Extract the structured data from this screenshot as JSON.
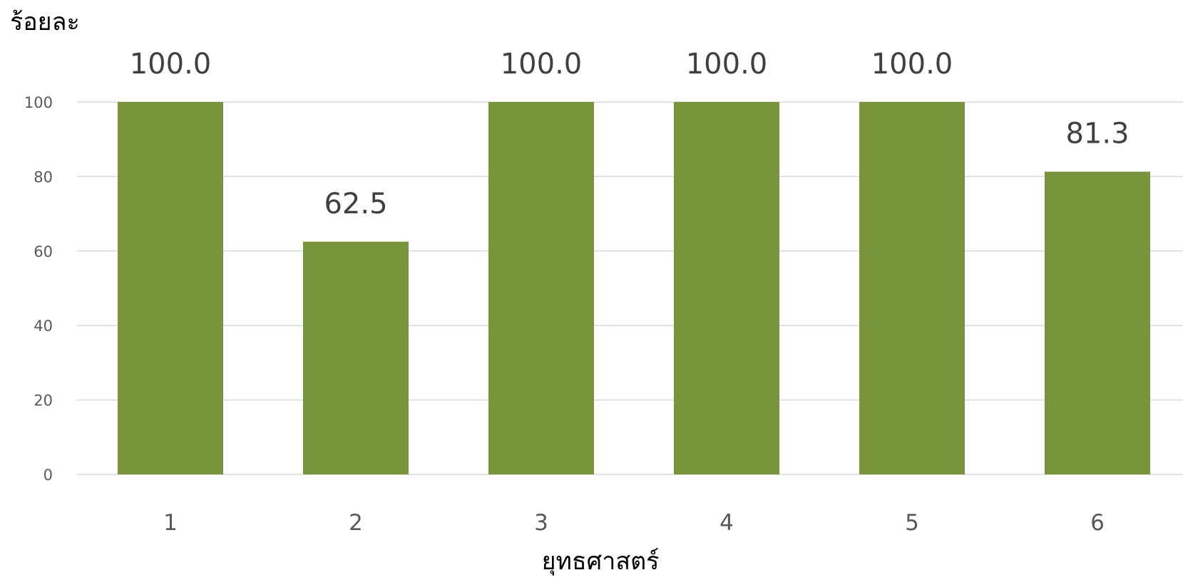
{
  "chart_data": {
    "type": "bar",
    "ylabel": "ร้อยละ",
    "xlabel": "ยุทธศาสตร์",
    "categories": [
      "1",
      "2",
      "3",
      "4",
      "5",
      "6"
    ],
    "values": [
      100.0,
      62.5,
      100.0,
      100.0,
      100.0,
      81.3
    ],
    "data_labels": [
      "100.0",
      "62.5",
      "100.0",
      "100.0",
      "100.0",
      "81.3"
    ],
    "ylim": [
      0,
      100
    ],
    "yticks": [
      0,
      20,
      40,
      60,
      80,
      100
    ],
    "grid": true,
    "legend": "none",
    "bar_color": "#78953c"
  }
}
